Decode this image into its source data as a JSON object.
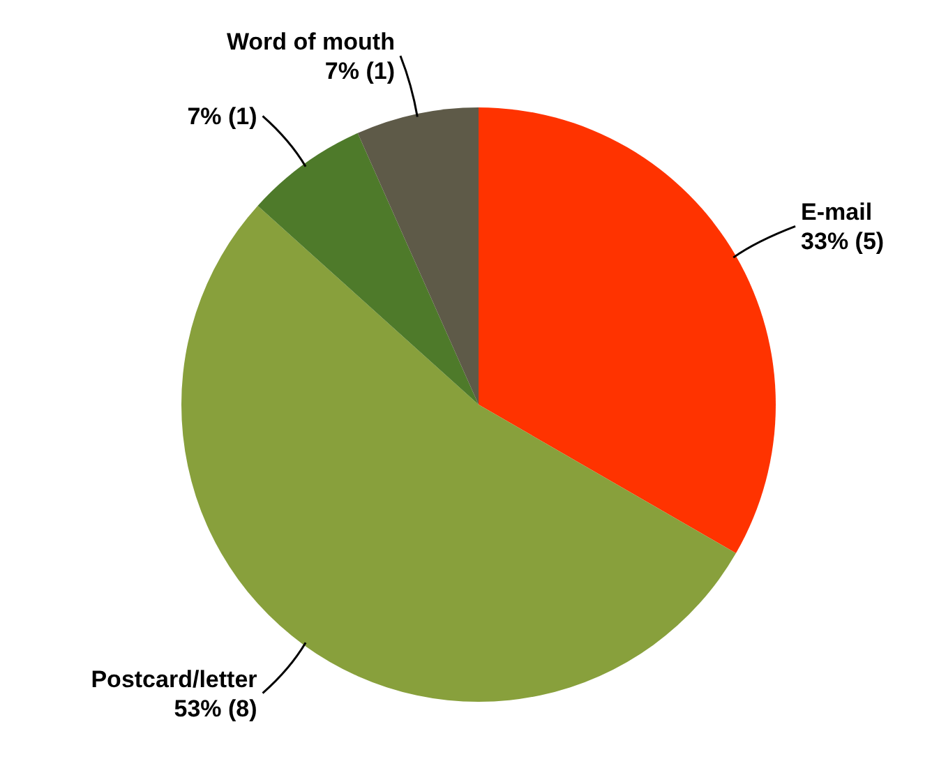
{
  "chart_data": {
    "type": "pie",
    "categories": [
      "E-mail",
      "Postcard/letter",
      null,
      "Word of mouth"
    ],
    "values": [
      5,
      8,
      1,
      1
    ],
    "colors": [
      "#ff3300",
      "#88a03c",
      "#4e7a2a",
      "#5e5a48"
    ],
    "value_labels": [
      "33% (5)",
      "53% (8)",
      "7% (1)",
      "7% (1)"
    ]
  }
}
